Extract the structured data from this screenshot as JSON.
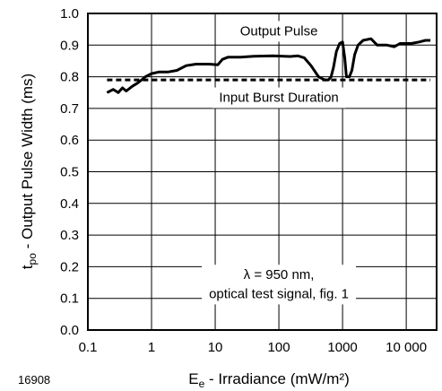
{
  "chart_data": {
    "type": "line",
    "x_scale": "log",
    "xlim": [
      0.1,
      30000
    ],
    "ylim": [
      0.0,
      1.0
    ],
    "grid": true,
    "xlabel": {
      "base": "E",
      "sub": "e",
      "rest": " - Irradiance (mW/m²)"
    },
    "ylabel": {
      "base": "t",
      "sub": "po",
      "rest": " - Output Pulse Width (ms)"
    },
    "x_ticks": [
      {
        "value": 0.1,
        "label": "0.1"
      },
      {
        "value": 1,
        "label": "1"
      },
      {
        "value": 10,
        "label": "10"
      },
      {
        "value": 100,
        "label": "100"
      },
      {
        "value": 1000,
        "label": "1000"
      },
      {
        "value": 10000,
        "label": "10 000"
      }
    ],
    "y_ticks": [
      {
        "value": 0.0,
        "label": "0.0"
      },
      {
        "value": 0.1,
        "label": "0.1"
      },
      {
        "value": 0.2,
        "label": "0.2"
      },
      {
        "value": 0.3,
        "label": "0.3"
      },
      {
        "value": 0.4,
        "label": "0.4"
      },
      {
        "value": 0.5,
        "label": "0.5"
      },
      {
        "value": 0.6,
        "label": "0.6"
      },
      {
        "value": 0.7,
        "label": "0.7"
      },
      {
        "value": 0.8,
        "label": "0.8"
      },
      {
        "value": 0.9,
        "label": "0.9"
      },
      {
        "value": 1.0,
        "label": "1.0"
      }
    ],
    "series": [
      {
        "style": "solid",
        "points": [
          [
            0.2,
            0.75
          ],
          [
            0.25,
            0.76
          ],
          [
            0.3,
            0.75
          ],
          [
            0.35,
            0.765
          ],
          [
            0.4,
            0.755
          ],
          [
            0.5,
            0.77
          ],
          [
            0.6,
            0.78
          ],
          [
            0.7,
            0.79
          ],
          [
            0.8,
            0.8
          ],
          [
            1.0,
            0.81
          ],
          [
            1.3,
            0.815
          ],
          [
            1.8,
            0.815
          ],
          [
            2.5,
            0.82
          ],
          [
            3.5,
            0.835
          ],
          [
            5,
            0.84
          ],
          [
            8,
            0.84
          ],
          [
            11,
            0.838
          ],
          [
            13,
            0.855
          ],
          [
            16,
            0.862
          ],
          [
            25,
            0.862
          ],
          [
            40,
            0.865
          ],
          [
            80,
            0.866
          ],
          [
            150,
            0.864
          ],
          [
            200,
            0.866
          ],
          [
            250,
            0.86
          ],
          [
            320,
            0.835
          ],
          [
            420,
            0.8
          ],
          [
            520,
            0.79
          ],
          [
            600,
            0.79
          ],
          [
            660,
            0.8
          ],
          [
            720,
            0.83
          ],
          [
            800,
            0.88
          ],
          [
            900,
            0.905
          ],
          [
            1000,
            0.91
          ],
          [
            1080,
            0.86
          ],
          [
            1150,
            0.8
          ],
          [
            1280,
            0.8
          ],
          [
            1400,
            0.82
          ],
          [
            1550,
            0.87
          ],
          [
            1750,
            0.9
          ],
          [
            2100,
            0.915
          ],
          [
            2800,
            0.92
          ],
          [
            3500,
            0.9
          ],
          [
            5000,
            0.9
          ],
          [
            6500,
            0.895
          ],
          [
            8000,
            0.905
          ],
          [
            12000,
            0.905
          ],
          [
            16000,
            0.91
          ],
          [
            20000,
            0.915
          ],
          [
            24000,
            0.915
          ]
        ]
      },
      {
        "style": "dashed",
        "points": [
          [
            0.2,
            0.79
          ],
          [
            24000,
            0.79
          ]
        ]
      }
    ],
    "annotations": [
      {
        "text": "Output Pulse",
        "x": 100,
        "y": 0.945
      },
      {
        "text": "Input Burst Duration",
        "x": 100,
        "y": 0.735
      },
      {
        "text": "λ = 950 nm,",
        "x": 100,
        "y": 0.175
      },
      {
        "text": "optical test signal, fig. 1",
        "x": 100,
        "y": 0.115
      }
    ],
    "figure_id": "16908"
  }
}
